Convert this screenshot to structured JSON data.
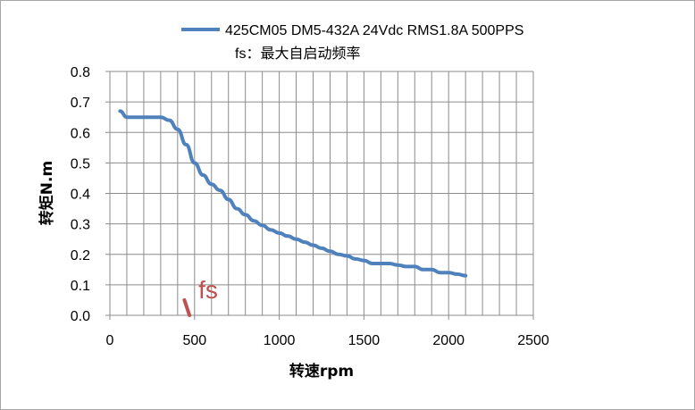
{
  "chart_data": {
    "type": "line",
    "title": "",
    "xlabel": "转速rpm",
    "ylabel": "转矩N.m",
    "xlim": [
      0,
      2500
    ],
    "ylim": [
      0,
      0.8
    ],
    "x_ticks": [
      "0",
      "500",
      "1000",
      "1500",
      "2000",
      "2500"
    ],
    "y_ticks": [
      "0.0",
      "0.1",
      "0.2",
      "0.3",
      "0.4",
      "0.5",
      "0.6",
      "0.7",
      "0.8"
    ],
    "grid": true,
    "legend_position": "top",
    "series": [
      {
        "name": "425CM05 DM5-432A 24Vdc RMS1.8A 500PPS",
        "color": "#4f81bd",
        "x": [
          60,
          100,
          150,
          200,
          250,
          300,
          350,
          400,
          450,
          500,
          550,
          600,
          650,
          700,
          750,
          800,
          850,
          900,
          950,
          1000,
          1050,
          1100,
          1150,
          1200,
          1250,
          1300,
          1350,
          1400,
          1450,
          1500,
          1550,
          1600,
          1650,
          1700,
          1750,
          1800,
          1850,
          1900,
          1950,
          2000,
          2050,
          2100
        ],
        "values": [
          0.67,
          0.65,
          0.65,
          0.65,
          0.65,
          0.65,
          0.64,
          0.61,
          0.56,
          0.5,
          0.46,
          0.43,
          0.41,
          0.38,
          0.35,
          0.33,
          0.31,
          0.295,
          0.28,
          0.27,
          0.26,
          0.25,
          0.24,
          0.23,
          0.22,
          0.21,
          0.2,
          0.195,
          0.185,
          0.18,
          0.17,
          0.17,
          0.17,
          0.165,
          0.16,
          0.16,
          0.15,
          0.15,
          0.14,
          0.14,
          0.135,
          0.13
        ]
      }
    ],
    "legend_note": "fs：最大自启动频率",
    "annotations": [
      {
        "text": "fs",
        "color": "#c0504d",
        "marker_x": [
          440,
          470
        ],
        "marker_y": [
          0.05,
          0.0
        ]
      }
    ]
  }
}
